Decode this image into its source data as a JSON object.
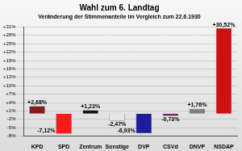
{
  "chart_data": {
    "type": "bar",
    "title": "Wahl zum 6. Landtag",
    "subtitle": "Veränderung der Stimmenanteile im Vergleich zum 22.6.1930",
    "categories": [
      "KPD",
      "SPD",
      "Zentrum",
      "Sonstige",
      "DVP",
      "CSVd",
      "DNVP",
      "NSDAP"
    ],
    "values": [
      2.68,
      -7.12,
      1.23,
      -2.47,
      -6.93,
      -0.73,
      1.76,
      30.52
    ],
    "value_labels": [
      "+2,68%",
      "-7,12%",
      "+1,23%",
      "-2,47%",
      "-6,93%",
      "-0,73%",
      "+1,76%",
      "+30,52%"
    ],
    "colors": [
      "#8b1a1a",
      "#ff1a1a",
      "#111111",
      "#e6e6e6",
      "#1c1c9c",
      "#7a1a7a",
      "#7f7f7f",
      "#cc1111"
    ],
    "ylim": [
      -8,
      31
    ],
    "yticks": [
      {
        "value": -8,
        "label": "-8%"
      },
      {
        "value": -5,
        "label": "-5%"
      },
      {
        "value": -2,
        "label": "-2%"
      },
      {
        "value": 1,
        "label": "+1%"
      },
      {
        "value": 4,
        "label": "+4%"
      },
      {
        "value": 7,
        "label": "+7%"
      },
      {
        "value": 10,
        "label": "+10%"
      },
      {
        "value": 13,
        "label": "+13%"
      },
      {
        "value": 16,
        "label": "+16%"
      },
      {
        "value": 19,
        "label": "+19%"
      },
      {
        "value": 22,
        "label": "+22%"
      },
      {
        "value": 25,
        "label": "+25%"
      },
      {
        "value": 28,
        "label": "+28%"
      },
      {
        "value": 31,
        "label": "+31%"
      }
    ],
    "grid": true,
    "data_labels": true
  }
}
